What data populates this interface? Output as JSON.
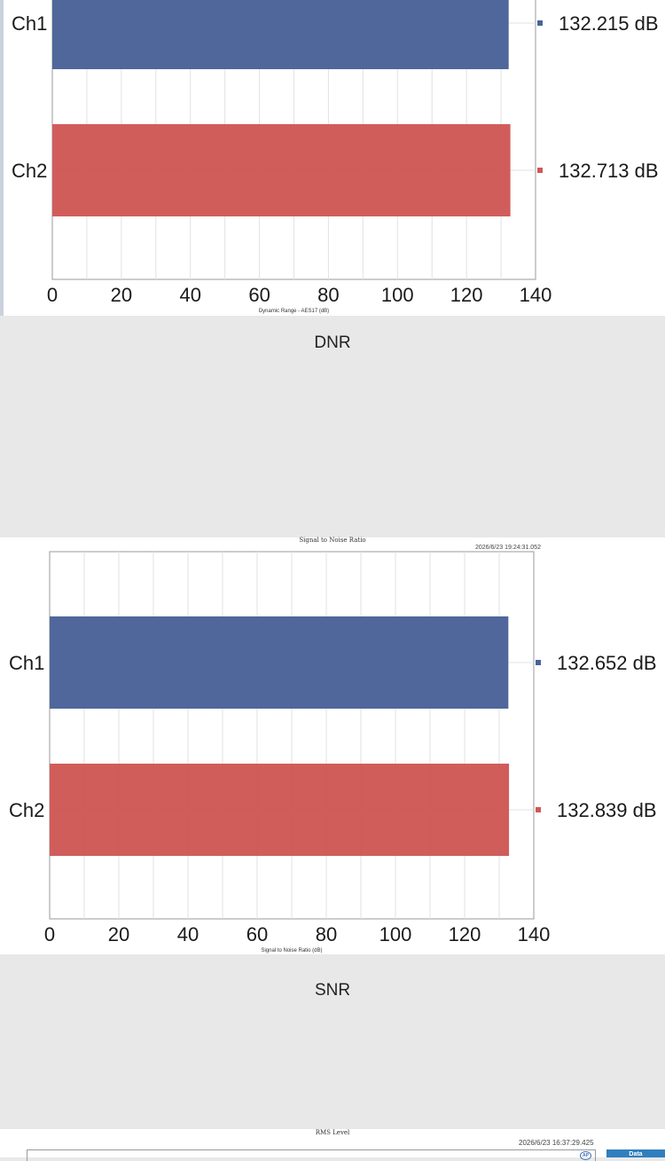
{
  "colors": {
    "ch1": "#4a6299",
    "ch2": "#d05856"
  },
  "dnr": {
    "axis_title": "Dynamic Range - AES17 (dB)",
    "caption": "DNR"
  },
  "snr": {
    "title": "Signal to Noise Ratio",
    "timestamp": "2026/6/23 19:24:31.052",
    "axis_title": "Signal to Noise Ratio (dB)",
    "caption": "SNR"
  },
  "rms": {
    "title": "RMS Level",
    "timestamp": "2026/6/23 16:37:29.425",
    "data_button": "Data"
  },
  "chart_data": [
    {
      "type": "bar",
      "orientation": "horizontal",
      "xlabel": "Dynamic Range - AES17 (dB)",
      "xlim": [
        0,
        140
      ],
      "xticks": [
        0,
        20,
        40,
        60,
        80,
        100,
        120,
        140
      ],
      "grid": true,
      "categories": [
        "Ch1",
        "Ch2"
      ],
      "values": [
        132.215,
        132.713
      ],
      "value_labels": [
        "132.215  dB",
        "132.713  dB"
      ]
    },
    {
      "type": "bar",
      "orientation": "horizontal",
      "title": "Signal to Noise Ratio",
      "xlabel": "Signal to Noise Ratio (dB)",
      "xlim": [
        0,
        140
      ],
      "xticks": [
        0,
        20,
        40,
        60,
        80,
        100,
        120,
        140
      ],
      "grid": true,
      "categories": [
        "Ch1",
        "Ch2"
      ],
      "values": [
        132.652,
        132.839
      ],
      "value_labels": [
        "132.652  dB",
        "132.839  dB"
      ]
    }
  ]
}
